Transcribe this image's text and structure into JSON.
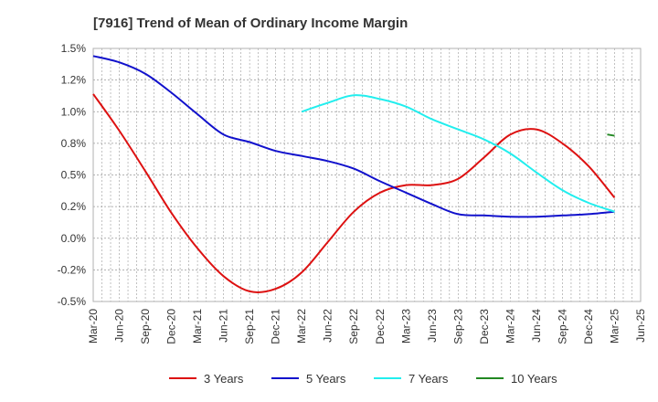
{
  "chart_data": {
    "type": "line",
    "title": "[7916]  Trend of Mean of Ordinary Income Margin",
    "xlabel": "",
    "ylabel": "",
    "x_labels": [
      "Mar-20",
      "Jun-20",
      "Sep-20",
      "Dec-20",
      "Mar-21",
      "Jun-21",
      "Sep-21",
      "Dec-21",
      "Mar-22",
      "Jun-22",
      "Sep-22",
      "Dec-22",
      "Mar-23",
      "Jun-23",
      "Sep-23",
      "Dec-23",
      "Mar-24",
      "Jun-24",
      "Sep-24",
      "Dec-24",
      "Mar-25",
      "Jun-25"
    ],
    "y_tick_labels": [
      "1.5%",
      "1.2%",
      "1.0%",
      "0.8%",
      "0.5%",
      "0.2%",
      "0.0%",
      "-0.2%",
      "-0.5%"
    ],
    "y_tick_values": [
      1.5,
      1.25,
      1.0,
      0.75,
      0.5,
      0.25,
      0.0,
      -0.25,
      -0.5
    ],
    "ylim": [
      -0.5,
      1.5
    ],
    "grid": true,
    "legend_position": "bottom",
    "series": [
      {
        "name": "3 Years",
        "color": "#dd1111",
        "values": [
          1.14,
          0.85,
          0.53,
          0.2,
          -0.08,
          -0.3,
          -0.42,
          -0.4,
          -0.27,
          -0.03,
          0.21,
          0.36,
          0.42,
          0.42,
          0.47,
          0.64,
          0.82,
          0.86,
          0.75,
          0.57,
          0.32,
          null
        ]
      },
      {
        "name": "5 Years",
        "color": "#1111cc",
        "values": [
          1.44,
          1.39,
          1.3,
          1.15,
          0.98,
          0.82,
          0.76,
          0.69,
          0.65,
          0.61,
          0.55,
          0.45,
          0.36,
          0.27,
          0.19,
          0.18,
          0.17,
          0.17,
          0.18,
          0.19,
          0.21,
          null
        ]
      },
      {
        "name": "7 Years",
        "color": "#22eeee",
        "values": [
          null,
          null,
          null,
          null,
          null,
          null,
          null,
          null,
          1.0,
          1.07,
          1.13,
          1.1,
          1.04,
          0.94,
          0.86,
          0.78,
          0.67,
          0.52,
          0.38,
          0.28,
          0.21,
          null
        ]
      },
      {
        "name": "10 Years",
        "color": "#228822",
        "values": [
          null,
          null,
          null,
          null,
          null,
          null,
          null,
          null,
          null,
          null,
          null,
          null,
          null,
          null,
          null,
          null,
          null,
          null,
          null,
          null,
          0.82,
          null
        ],
        "segment": [
          0.82,
          0.81
        ]
      }
    ]
  }
}
